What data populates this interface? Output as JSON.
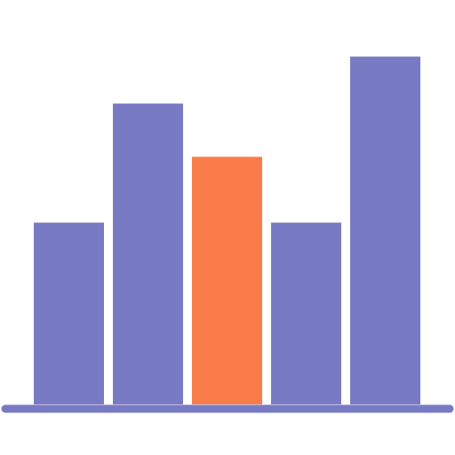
{
  "icon": {
    "name": "bar-chart-icon",
    "bar_color": "#787bc4",
    "highlight_color": "#fa7b4a",
    "baseline_color": "#787bc4"
  },
  "chart_data": {
    "type": "bar",
    "values": [
      5.8,
      9.6,
      7.9,
      5.8,
      11.1
    ],
    "highlight_index": 2,
    "ylim": [
      0,
      11.6
    ]
  }
}
